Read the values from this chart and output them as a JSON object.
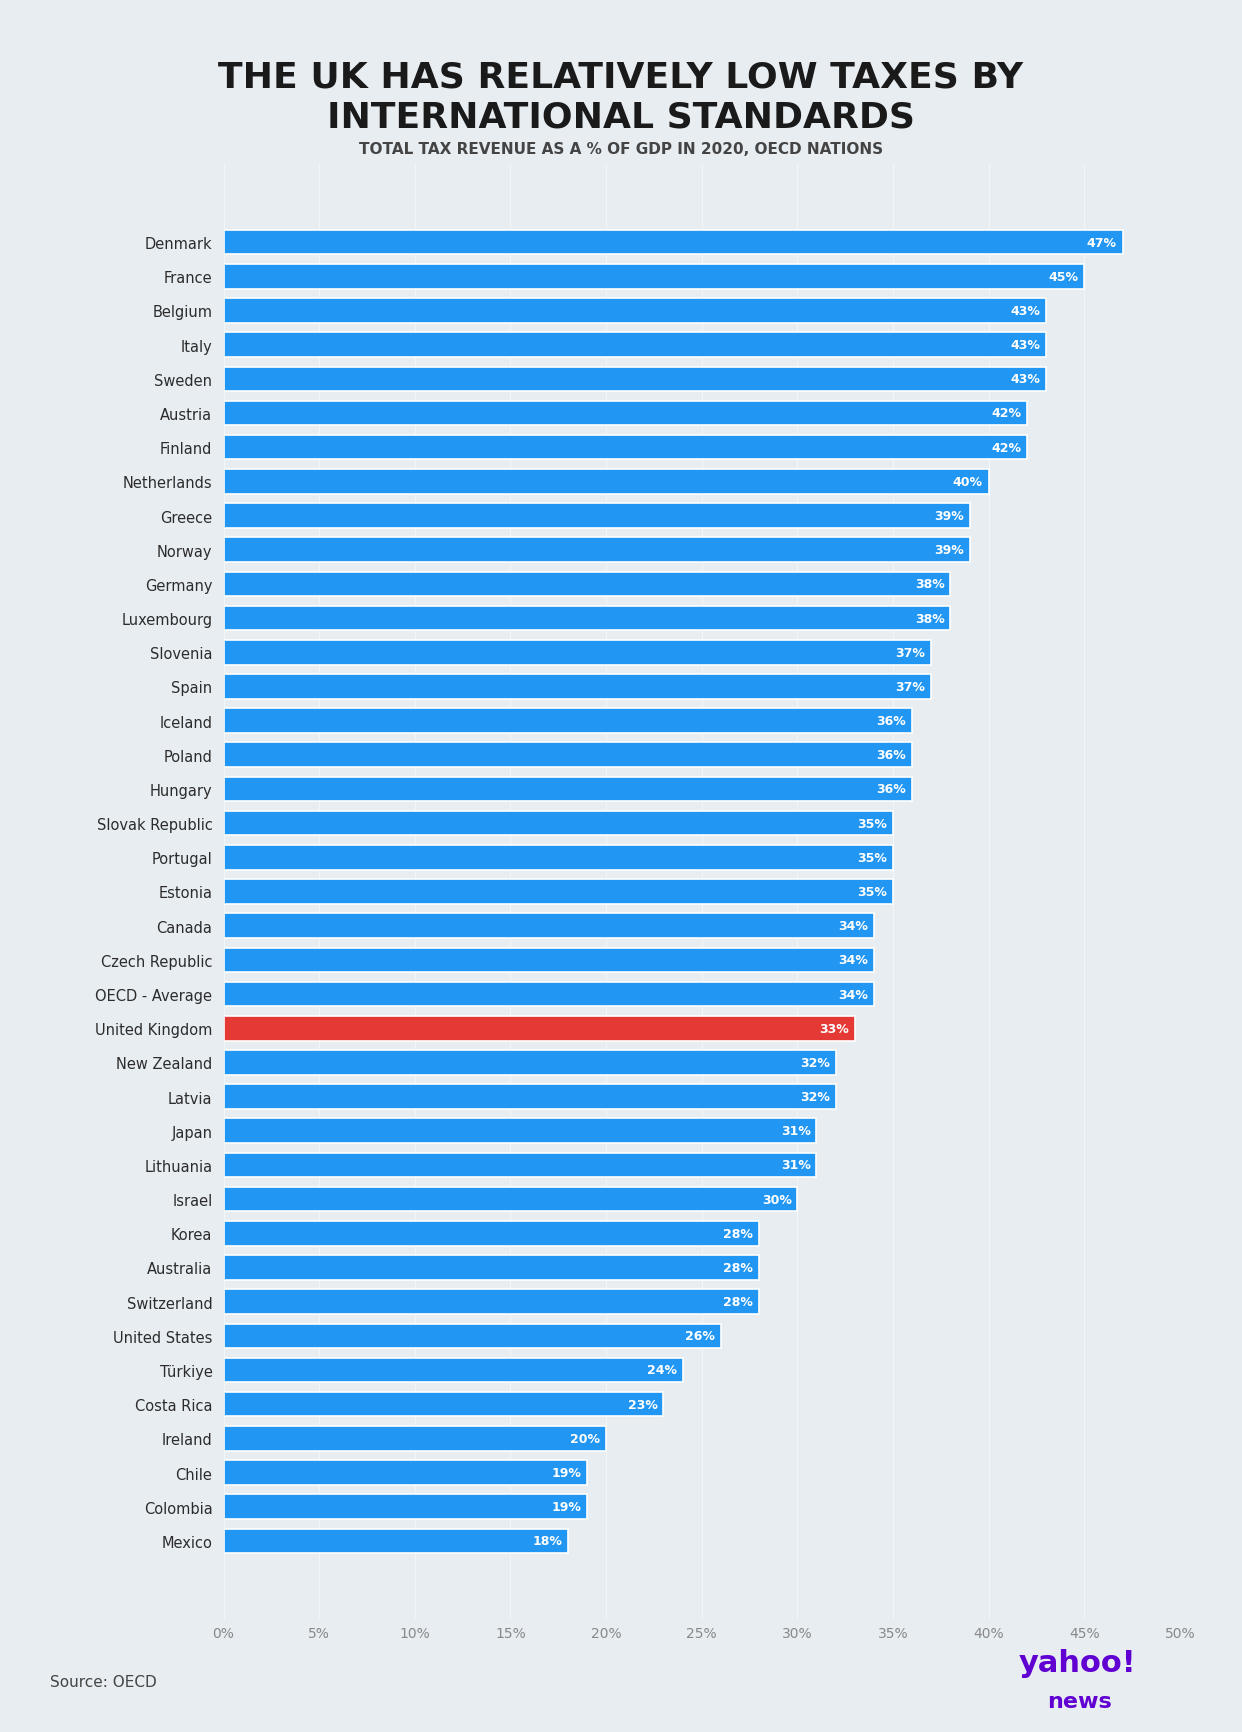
{
  "title_line1": "THE UK HAS RELATIVELY LOW TAXES BY",
  "title_line2": "INTERNATIONAL STANDARDS",
  "subtitle": "TOTAL TAX REVENUE AS A % OF GDP IN 2020, OECD NATIONS",
  "source": "Source: OECD",
  "background_color": "#e8edf2",
  "bar_color": "#2196F3",
  "highlight_color": "#e53935",
  "text_color_dark": "#2c2c2c",
  "title_color": "#1a1a1a",
  "countries": [
    "Denmark",
    "France",
    "Belgium",
    "Italy",
    "Sweden",
    "Austria",
    "Finland",
    "Netherlands",
    "Greece",
    "Norway",
    "Germany",
    "Luxembourg",
    "Slovenia",
    "Spain",
    "Iceland",
    "Poland",
    "Hungary",
    "Slovak Republic",
    "Portugal",
    "Estonia",
    "Canada",
    "Czech Republic",
    "OECD - Average",
    "United Kingdom",
    "New Zealand",
    "Latvia",
    "Japan",
    "Lithuania",
    "Israel",
    "Korea",
    "Australia",
    "Switzerland",
    "United States",
    "Türkiye",
    "Costa Rica",
    "Ireland",
    "Chile",
    "Colombia",
    "Mexico"
  ],
  "values": [
    47,
    45,
    43,
    43,
    43,
    42,
    42,
    40,
    39,
    39,
    38,
    38,
    37,
    37,
    36,
    36,
    36,
    35,
    35,
    35,
    34,
    34,
    34,
    33,
    32,
    32,
    31,
    31,
    30,
    28,
    28,
    28,
    26,
    24,
    23,
    20,
    19,
    19,
    18
  ],
  "highlight_country": "United Kingdom",
  "xlim": [
    0,
    50
  ],
  "xticks": [
    0,
    5,
    10,
    15,
    20,
    25,
    30,
    35,
    40,
    45,
    50
  ],
  "xtick_labels": [
    "0%",
    "5%",
    "10%",
    "15%",
    "20%",
    "25%",
    "30%",
    "35%",
    "40%",
    "45%",
    "50%"
  ]
}
